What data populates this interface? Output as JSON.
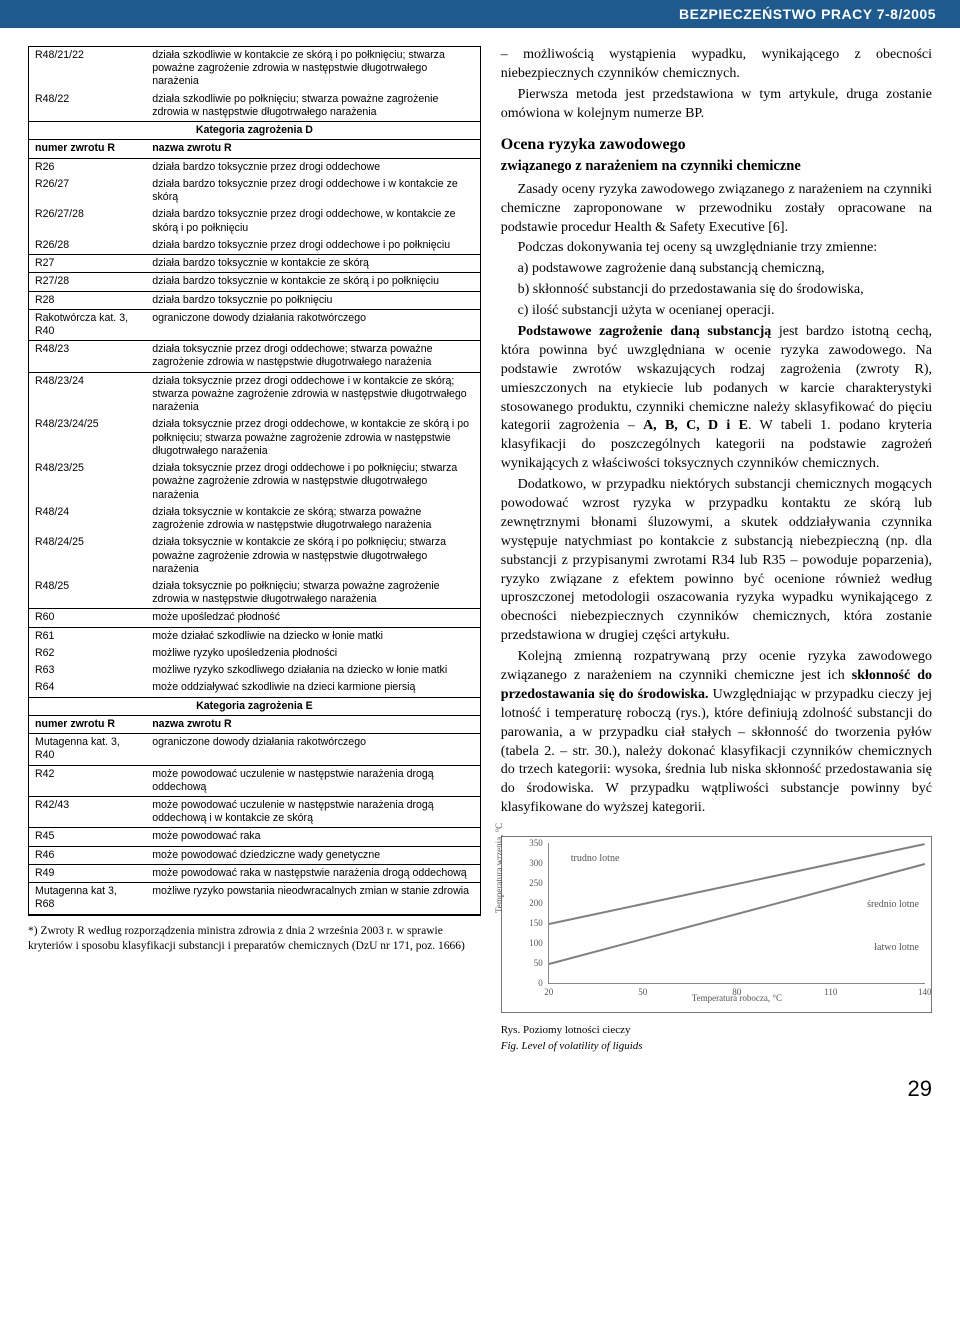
{
  "header": "BEZPIECZEŃSTWO PRACY 7-8/2005",
  "catD": {
    "title": "Kategoria zagrożenia D",
    "col1": "numer zwrotu R",
    "col2": "nazwa zwrotu R",
    "pre": [
      {
        "c": "R48/21/22",
        "t": "działa szkodliwie w kontakcie ze skórą i po połknięciu; stwarza poważne zagrożenie zdrowia w następstwie długotrwałego narażenia"
      },
      {
        "c": "R48/22",
        "t": "działa szkodliwie po połknięciu; stwarza poważne zagrożenie zdrowia w następstwie długotrwałego narażenia"
      }
    ],
    "rows": [
      {
        "c": "R26",
        "t": "działa bardzo toksycznie przez drogi oddechowe"
      },
      {
        "c": "R26/27",
        "t": "działa bardzo toksycznie przez drogi oddechowe i w kontakcie ze skórą"
      },
      {
        "c": "R26/27/28",
        "t": "działa bardzo toksycznie przez drogi oddechowe, w kontakcie ze skórą i po połknięciu"
      },
      {
        "c": "R26/28",
        "t": "działa bardzo toksycznie przez drogi oddechowe i po połknięciu"
      },
      {
        "c": "R27",
        "t": "działa bardzo toksycznie w kontakcie ze skórą",
        "sep": true
      },
      {
        "c": "R27/28",
        "t": "działa bardzo toksycznie w kontakcie ze skórą i po połknięciu"
      },
      {
        "c": "R28",
        "t": "działa bardzo toksycznie po połknięciu",
        "sep": true
      },
      {
        "c": "Rakotwórcza kat. 3,\nR40",
        "t": "ograniczone dowody działania rakotwórczego",
        "sep": true
      },
      {
        "c": "R48/23",
        "t": "działa toksycznie przez drogi oddechowe; stwarza poważne zagrożenie zdrowia w następstwie długotrwałego narażenia",
        "sep": true
      },
      {
        "c": "R48/23/24",
        "t": "działa toksycznie przez drogi oddechowe i w kontakcie ze skórą; stwarza poważne zagrożenie zdrowia w następstwie długotrwałego narażenia"
      },
      {
        "c": "R48/23/24/25",
        "t": "działa toksycznie przez drogi oddechowe, w kontakcie ze skórą i po połknięciu; stwarza poważne zagrożenie zdrowia w następstwie długotrwałego narażenia"
      },
      {
        "c": "R48/23/25",
        "t": "działa toksycznie przez drogi oddechowe i po połknięciu; stwarza poważne zagrożenie zdrowia w następstwie długotrwałego narażenia"
      },
      {
        "c": "R48/24",
        "t": "działa toksycznie w kontakcie ze skórą; stwarza poważne zagrożenie zdrowia w następstwie długotrwałego narażenia"
      },
      {
        "c": "R48/24/25",
        "t": "działa toksycznie w kontakcie ze skórą i po połknięciu; stwarza poważne zagrożenie zdrowia w następstwie długotrwałego narażenia"
      },
      {
        "c": "R48/25",
        "t": "działa toksycznie po połknięciu; stwarza poważne zagrożenie zdrowia w następstwie długotrwałego narażenia"
      },
      {
        "c": "R60",
        "t": "może upośledzać płodność",
        "sep": true
      },
      {
        "c": "R61",
        "t": "może działać szkodliwie na dziecko w łonie matki"
      },
      {
        "c": "R62",
        "t": "możliwe ryzyko upośledzenia płodności"
      },
      {
        "c": "R63",
        "t": "możliwe ryzyko szkodliwego działania na dziecko w łonie matki"
      },
      {
        "c": "R64",
        "t": "może oddziaływać szkodliwie na dzieci karmione piersią"
      }
    ]
  },
  "catE": {
    "title": "Kategoria zagrożenia E",
    "col1": "numer zwrotu R",
    "col2": "nazwa zwrotu R",
    "rows": [
      {
        "c": "Mutagenna kat. 3,\nR40",
        "t": "ograniczone dowody działania rakotwórczego"
      },
      {
        "c": "R42",
        "t": "może powodować uczulenie w następstwie narażenia drogą oddechową",
        "sep": true
      },
      {
        "c": "R42/43",
        "t": "może powodować uczulenie w następstwie narażenia drogą oddechową i w kontakcie ze skórą"
      },
      {
        "c": "R45",
        "t": "może powodować raka",
        "sep": true
      },
      {
        "c": "R46",
        "t": "może powodować dziedziczne wady genetyczne",
        "sep": true
      },
      {
        "c": "R49",
        "t": "może powodować raka w następstwie narażenia drogą oddechową",
        "sep": true
      },
      {
        "c": "Mutagenna kat 3,\nR68",
        "t": "możliwe ryzyko powstania nieodwracalnych zmian w stanie zdrowia",
        "sep": true
      }
    ]
  },
  "footnote": "*) Zwroty R według rozporządzenia ministra zdrowia z dnia 2 września 2003 r. w sprawie kryteriów i sposobu klasyfikacji substancji i preparatów chemicznych (DzU nr 171, poz. 1666)",
  "text": {
    "p1_a": "– możliwością wystąpienia wypadku, wynikającego z obecności niebezpiecznych czynników chemicznych.",
    "p1_b": "Pierwsza metoda jest przedstawiona w tym artykule, druga zostanie omówiona w kolejnym numerze BP.",
    "h3": "Ocena ryzyka zawodowego",
    "h4": "związanego z narażeniem na czynniki chemiczne",
    "p2": "Zasady oceny ryzyka zawodowego związanego z narażeniem na czynniki chemiczne zaproponowane w przewodniku zostały opracowane na podstawie procedur Health & Safety Executive [6].",
    "p3": "Podczas dokonywania tej oceny są uwzględnianie trzy zmienne:",
    "p3a": "a) podstawowe zagrożenie daną substancją chemiczną,",
    "p3b": "b) skłonność substancji do przedostawania się do środowiska,",
    "p3c": "c) ilość substancji użyta w ocenianej operacji.",
    "p4": "Podstawowe zagrożenie daną substancją jest bardzo istotną cechą, która powinna być uwzględniana w ocenie ryzyka zawodowego. Na podstawie zwrotów wskazujących rodzaj zagrożenia (zwroty R), umieszczonych na etykiecie lub podanych w karcie charakterystyki stosowanego produktu, czynniki chemiczne należy sklasyfikować do pięciu kategorii zagrożenia – A, B, C, D i E. W tabeli 1. podano kryteria klasyfikacji do poszczególnych kategorii na podstawie zagrożeń wynikających z właściwości toksycznych czynników chemicznych.",
    "p5": "Dodatkowo, w przypadku niektórych substancji chemicznych mogących powodować wzrost ryzyka w przypadku kontaktu ze skórą lub zewnętrznymi błonami śluzowymi, a skutek oddziaływania czynnika występuje natychmiast po kontakcie z substancją niebezpieczną (np. dla substancji z przypisanymi zwrotami R34 lub R35 – powoduje poparzenia), ryzyko związane z efektem powinno być ocenione również według uproszczonej metodologii oszacowania ryzyka wypadku wynikającego z obecności niebezpiecznych czynników chemicznych, która zostanie przedstawiona w drugiej części artykułu.",
    "p6": "Kolejną zmienną rozpatrywaną przy ocenie ryzyka zawodowego związanego z narażeniem na czynniki chemiczne jest ich skłonność do przedostawania się do środowiska. Uwzględniając w przypadku cieczy jej lotność i temperaturę roboczą (rys.), które definiują zdolność substancji do parowania, a w przypadku ciał stałych – skłonność do tworzenia pyłów (tabela 2. – str. 30.), należy dokonać klasyfikacji czynników chemicznych do trzech kategorii: wysoka, średnia lub niska skłonność przedostawania się do środowiska. W przypadku wątpliwości substancje powinny być klasyfikowane do wyższej kategorii."
  },
  "chart": {
    "ylabel": "Temperatura wrzenia, °C",
    "xlabel": "Temperatura robocza, °C",
    "yticks": [
      0,
      50,
      100,
      150,
      200,
      250,
      300,
      350
    ],
    "xticks": [
      20,
      50,
      80,
      110,
      140
    ],
    "ann1": "trudno lotne",
    "ann2": "średnio lotne",
    "ann3": "łatwo lotne",
    "line_color": "#808080",
    "bg": "#ffffff"
  },
  "caption": {
    "pl": "Rys. Poziomy lotności cieczy",
    "en": "Fig. Level of volatility of liguids"
  },
  "page_num": "29"
}
